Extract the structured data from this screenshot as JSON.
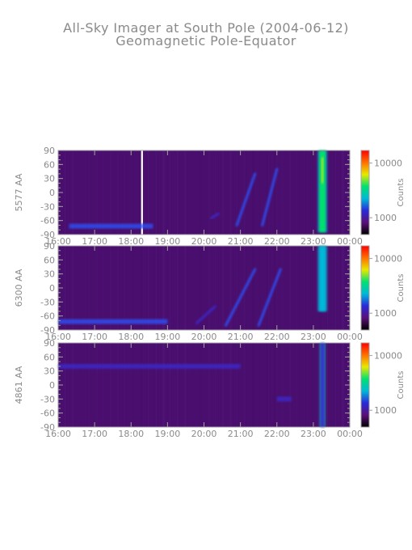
{
  "chart_data": {
    "type": "heatmap",
    "title": "All-Sky Imager at South Pole (2004-06-12)",
    "subtitle": "Geomagnetic Pole-Equator",
    "x_tick_labels": [
      "16:00",
      "17:00",
      "18:00",
      "19:00",
      "20:00",
      "21:00",
      "22:00",
      "23:00",
      "00:00"
    ],
    "y_ticks": [
      90,
      60,
      30,
      0,
      -30,
      -60,
      -90
    ],
    "ylim": [
      -90,
      90
    ],
    "colorbar_label": "Counts",
    "colorbar_ticks": [
      "10000",
      "1000"
    ],
    "colorscale": [
      "#000000",
      "#5a0f78",
      "#2a2ad8",
      "#00b8d8",
      "#00e070",
      "#e8e800",
      "#ff7000",
      "#ff0000"
    ],
    "panels": [
      {
        "ylabel": "5577 AA",
        "features": [
          {
            "kind": "band",
            "hour": 23.25,
            "width_h": 0.18,
            "lat_min": -85,
            "lat_max": 90,
            "intensity": "very high"
          },
          {
            "kind": "band",
            "hour": 18.3,
            "width_h": 0.05,
            "lat_min": -90,
            "lat_max": 90,
            "intensity": "data gap"
          },
          {
            "kind": "strip",
            "hour_start": 16.3,
            "hour_end": 18.6,
            "lat": -72,
            "intensity": "moderate"
          },
          {
            "kind": "arc",
            "hour_start": 20.9,
            "hour_end": 21.4,
            "lat_start": -70,
            "lat_end": 40,
            "intensity": "moderate"
          },
          {
            "kind": "arc",
            "hour_start": 21.6,
            "hour_end": 22.0,
            "lat_start": -70,
            "lat_end": 50,
            "intensity": "moderate"
          },
          {
            "kind": "arc",
            "hour_start": 20.2,
            "hour_end": 20.4,
            "lat_start": -55,
            "lat_end": -45,
            "intensity": "low"
          }
        ]
      },
      {
        "ylabel": "6300 AA",
        "features": [
          {
            "kind": "band",
            "hour": 23.25,
            "width_h": 0.18,
            "lat_min": -50,
            "lat_max": 90,
            "intensity": "high"
          },
          {
            "kind": "strip",
            "hour_start": 16.0,
            "hour_end": 19.0,
            "lat": -72,
            "intensity": "moderate"
          },
          {
            "kind": "arc",
            "hour_start": 20.6,
            "hour_end": 21.4,
            "lat_start": -80,
            "lat_end": 40,
            "intensity": "moderate"
          },
          {
            "kind": "arc",
            "hour_start": 21.5,
            "hour_end": 22.1,
            "lat_start": -80,
            "lat_end": 40,
            "intensity": "moderate"
          },
          {
            "kind": "arc",
            "hour_start": 19.8,
            "hour_end": 20.3,
            "lat_start": -75,
            "lat_end": -40,
            "intensity": "low"
          }
        ]
      },
      {
        "ylabel": "4861 AA",
        "features": [
          {
            "kind": "band",
            "hour": 23.25,
            "width_h": 0.08,
            "lat_min": -90,
            "lat_max": 90,
            "intensity": "low"
          },
          {
            "kind": "strip",
            "hour_start": 16.0,
            "hour_end": 21.0,
            "lat": 40,
            "intensity": "low"
          },
          {
            "kind": "strip",
            "hour_start": 22.0,
            "hour_end": 22.4,
            "lat": -30,
            "intensity": "low"
          }
        ]
      }
    ]
  }
}
